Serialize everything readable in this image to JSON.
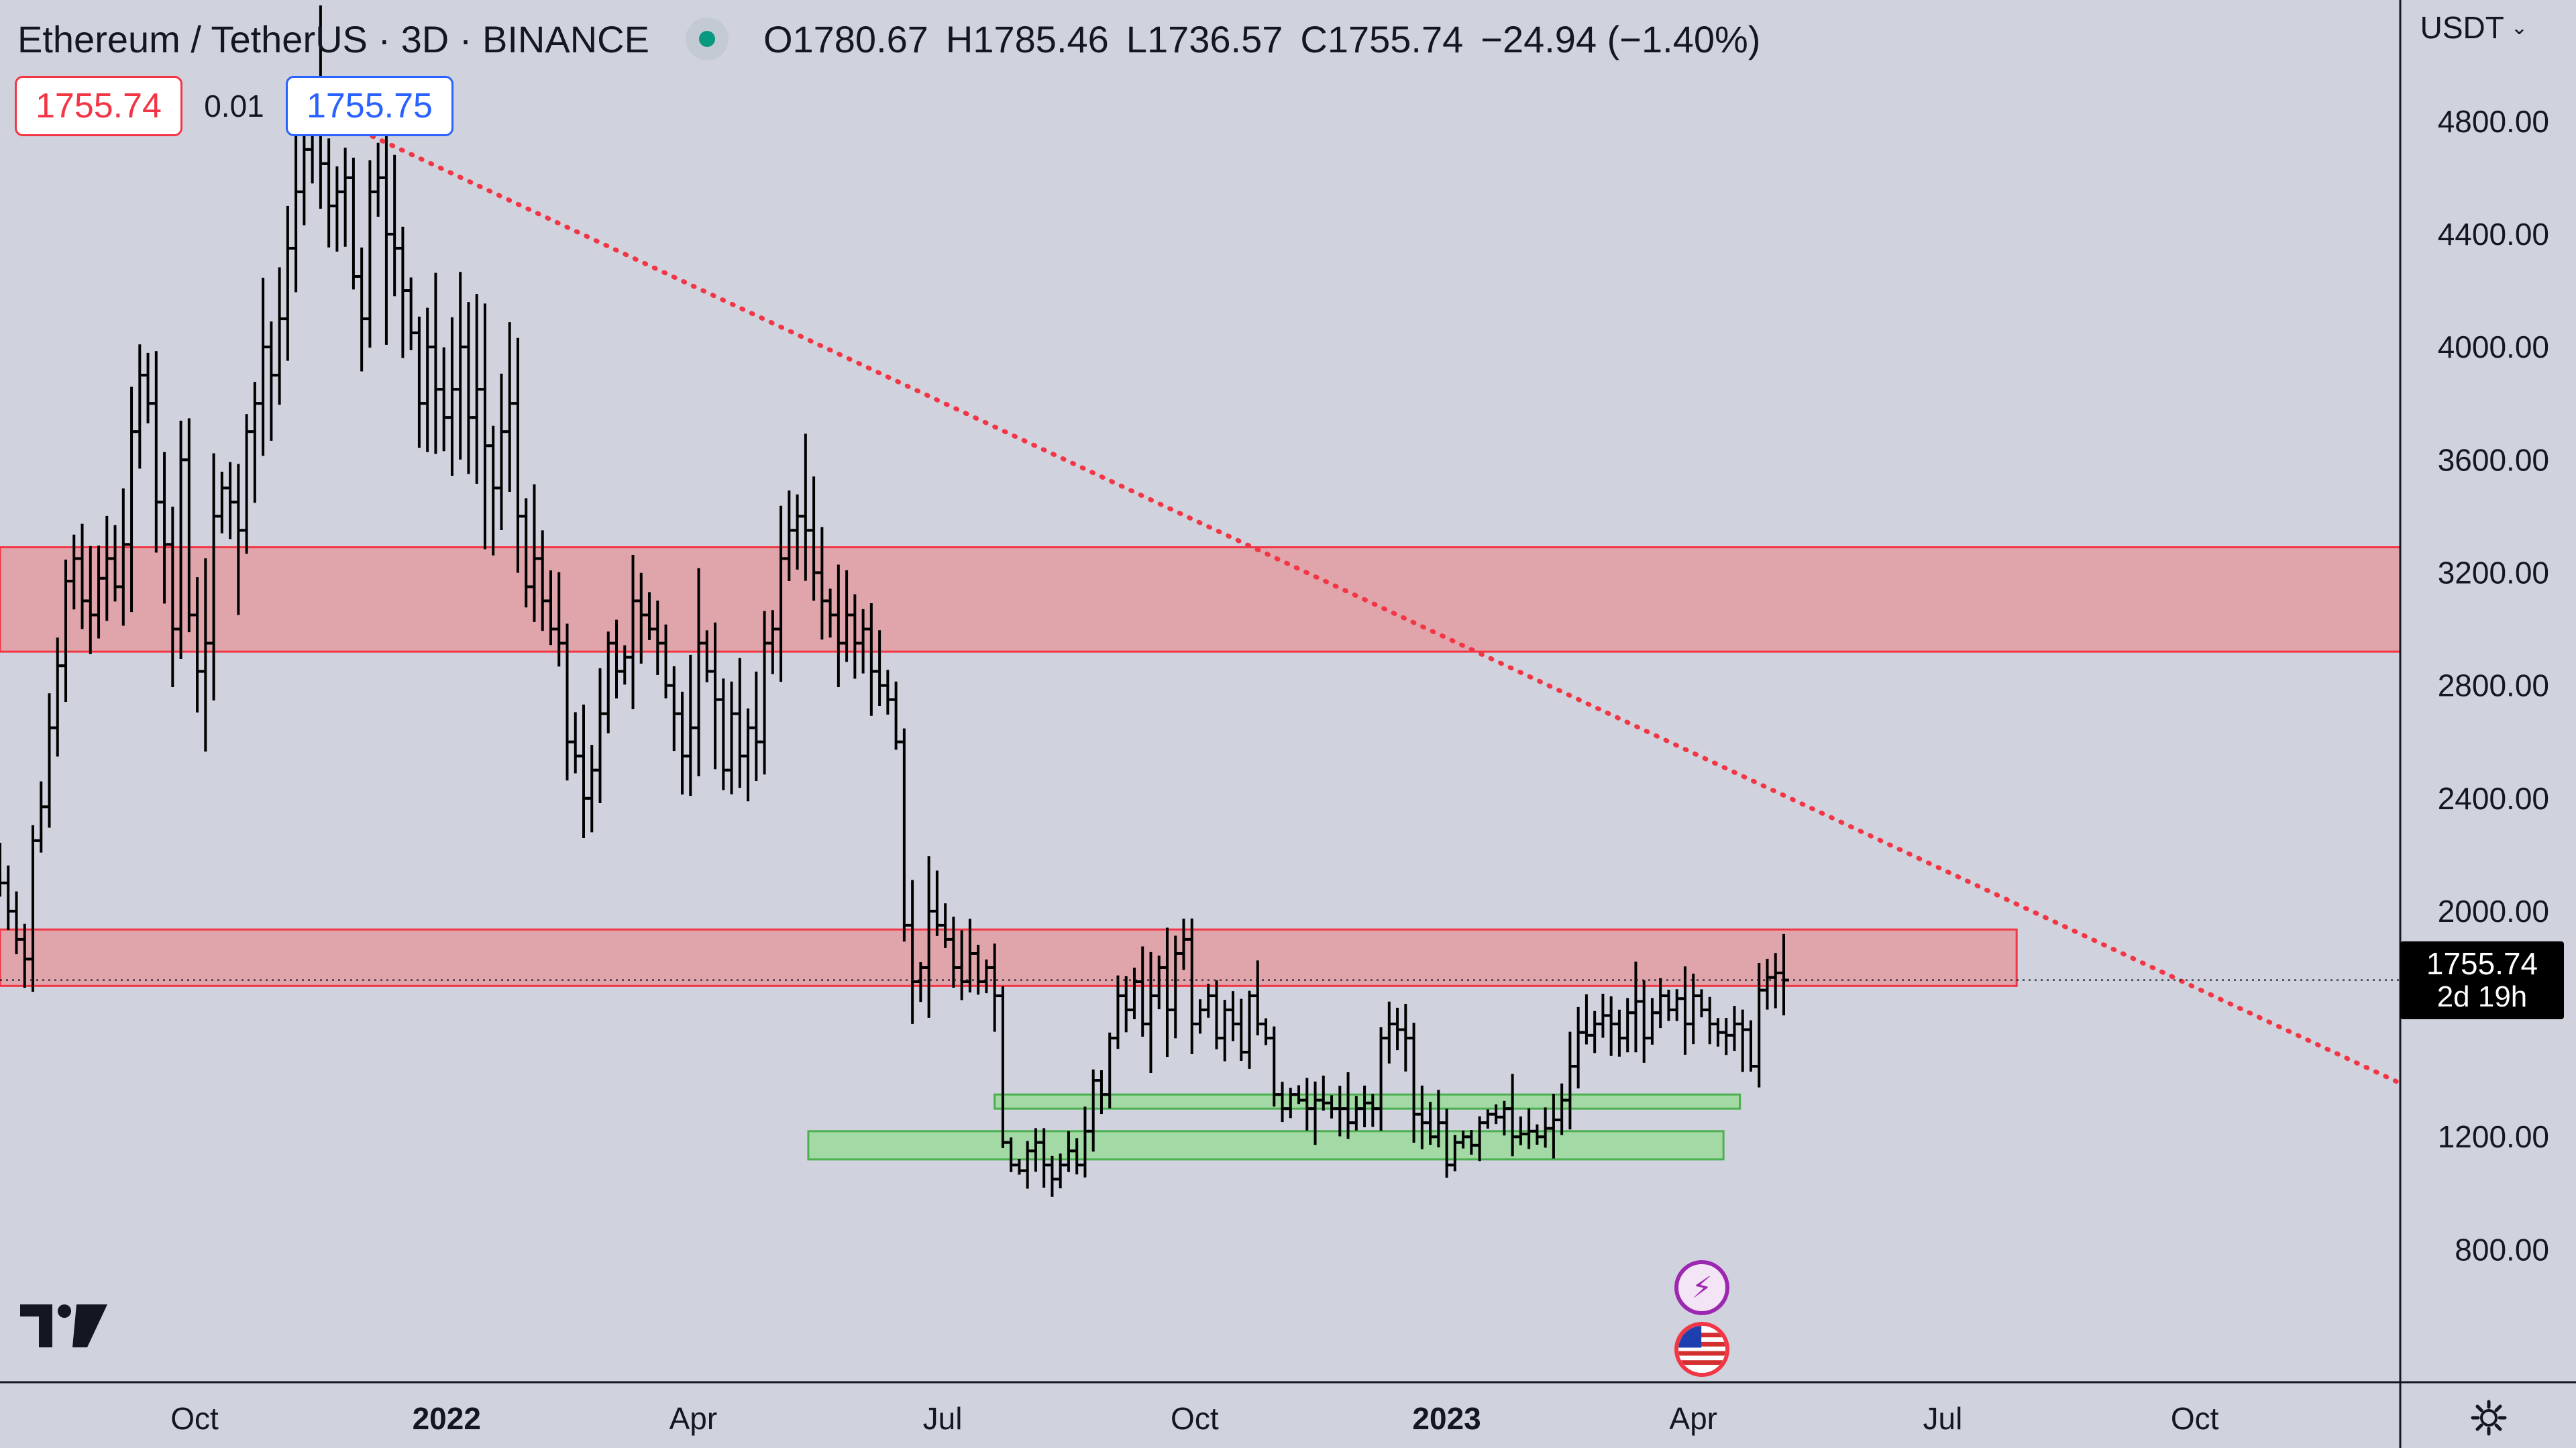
{
  "header": {
    "symbol_title": "Ethereum / TetherUS · 3D · BINANCE",
    "ohlc": {
      "open": "O1780.67",
      "high": "H1785.46",
      "low": "L1736.57",
      "close": "C1755.74",
      "change": "−24.94 (−1.40%)"
    },
    "sell_price": "1755.74",
    "spread": "0.01",
    "buy_price": "1755.75"
  },
  "price_scale": {
    "currency": "USDT",
    "last_price_label": "1755.74",
    "countdown": "2d 19h"
  },
  "icons": {
    "logo": "tradingview-logo-icon",
    "settings": "gear-icon",
    "event_1": "lightning-bolt-icon",
    "event_2": "us-flag-icon"
  },
  "colors": {
    "background": "#d0d3dd",
    "bar": "#000000",
    "resistance_zone_fill": "#e0a5ab",
    "resistance_zone_border": "#f23645",
    "support_zone_fill": "#a3d9a5",
    "support_zone_border": "#4caf50",
    "trendline": "#f23645"
  },
  "chart_data": {
    "type": "bar",
    "style": "ohlc-bars",
    "interval": "3D",
    "y_axis": {
      "ticks": [
        800,
        1200,
        2000,
        2400,
        2800,
        3200,
        3600,
        4000,
        4400,
        4800
      ],
      "tick_labels": [
        "800.00",
        "1200.00",
        "2000.00",
        "2400.00",
        "2800.00",
        "3200.00",
        "3600.00",
        "4000.00",
        "4400.00",
        "4800.00"
      ],
      "range": [
        330,
        5230
      ]
    },
    "x_axis": {
      "range": [
        "2021-07-22",
        "2023-12-15"
      ],
      "ticks": [
        {
          "date": "2021-10-01",
          "label": "Oct",
          "bold": false
        },
        {
          "date": "2022-01-01",
          "label": "2022",
          "bold": true
        },
        {
          "date": "2022-04-01",
          "label": "Apr",
          "bold": false
        },
        {
          "date": "2022-07-01",
          "label": "Jul",
          "bold": false
        },
        {
          "date": "2022-10-01",
          "label": "Oct",
          "bold": false
        },
        {
          "date": "2023-01-01",
          "label": "2023",
          "bold": true
        },
        {
          "date": "2023-04-01",
          "label": "Apr",
          "bold": false
        },
        {
          "date": "2023-07-01",
          "label": "Jul",
          "bold": false
        },
        {
          "date": "2023-10-01",
          "label": "Oct",
          "bold": false
        }
      ]
    },
    "bars_start": "2021-07-22",
    "bar_step_days": 3,
    "closes": [
      2100,
      2000,
      1900,
      1830,
      2250,
      2370,
      2650,
      2870,
      3170,
      3250,
      3100,
      3050,
      3180,
      3250,
      3150,
      3300,
      3700,
      3900,
      3800,
      3450,
      3300,
      3000,
      3600,
      3050,
      2850,
      2950,
      3400,
      3500,
      3450,
      3350,
      3700,
      3800,
      4000,
      3900,
      4100,
      4350,
      4550,
      4700,
      4800,
      4650,
      4500,
      4550,
      4600,
      4250,
      4100,
      4550,
      4600,
      4400,
      4350,
      4200,
      4050,
      3800,
      4000,
      3850,
      3750,
      3850,
      4000,
      3750,
      3850,
      3650,
      3500,
      3700,
      3800,
      3400,
      3150,
      3250,
      3100,
      3000,
      2950,
      2600,
      2550,
      2400,
      2500,
      2700,
      2950,
      2850,
      2900,
      3100,
      3050,
      3000,
      2950,
      2800,
      2700,
      2550,
      2650,
      2950,
      2850,
      2750,
      2500,
      2700,
      2550,
      2650,
      2600,
      2950,
      3000,
      3250,
      3350,
      3400,
      3350,
      3200,
      3100,
      3050,
      2950,
      3050,
      2950,
      3000,
      2850,
      2800,
      2750,
      2600,
      1950,
      1750,
      1800,
      2000,
      1950,
      1900,
      1800,
      1750,
      1850,
      1750,
      1800,
      1700,
      1180,
      1100,
      1080,
      1150,
      1180,
      1100,
      1050,
      1100,
      1150,
      1100,
      1220,
      1400,
      1350,
      1550,
      1700,
      1650,
      1750,
      1600,
      1700,
      1800,
      1650,
      1850,
      1900,
      1600,
      1650,
      1700,
      1550,
      1650,
      1600,
      1500,
      1700,
      1600,
      1550,
      1350,
      1300,
      1350,
      1330,
      1300,
      1330,
      1320,
      1300,
      1300,
      1250,
      1300,
      1320,
      1300,
      1550,
      1600,
      1580,
      1550,
      1280,
      1250,
      1200,
      1250,
      1100,
      1180,
      1200,
      1170,
      1250,
      1280,
      1270,
      1300,
      1200,
      1210,
      1220,
      1200,
      1230,
      1260,
      1330,
      1450,
      1570,
      1560,
      1600,
      1630,
      1600,
      1550,
      1640,
      1680,
      1550,
      1640,
      1700,
      1650,
      1690,
      1600,
      1700,
      1650,
      1600,
      1570,
      1560,
      1600,
      1580,
      1450,
      1720,
      1765,
      1781,
      1755.74
    ],
    "zones": [
      {
        "kind": "resistance",
        "from": "2021-07-22",
        "to": "2023-12-15",
        "low": 2920,
        "high": 3290
      },
      {
        "kind": "resistance",
        "from": "2021-07-22",
        "to": "2023-07-28",
        "low": 1735,
        "high": 1935
      },
      {
        "kind": "support",
        "from": "2022-07-20",
        "to": "2023-04-18",
        "low": 1300,
        "high": 1350
      },
      {
        "kind": "support",
        "from": "2022-05-13",
        "to": "2023-04-12",
        "low": 1120,
        "high": 1220
      }
    ],
    "trendline": {
      "style": "dotted",
      "points": [
        {
          "date": "2021-11-10",
          "value": 4860
        },
        {
          "date": "2023-12-15",
          "value": 1390
        }
      ]
    },
    "last_price": 1755.74
  }
}
